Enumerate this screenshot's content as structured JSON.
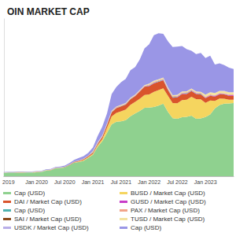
{
  "chart_data": {
    "type": "area",
    "title": "OIN MARKET CAP",
    "categories": [
      null,
      "2019",
      null,
      null,
      null,
      null,
      null,
      "Jan 2020",
      null,
      null,
      null,
      null,
      null,
      "Jul 2020",
      null,
      null,
      null,
      null,
      null,
      "Jan 2021",
      null,
      null,
      null,
      null,
      null,
      "Jul 2021",
      null,
      null,
      null,
      null,
      null,
      "Jan 2022",
      null,
      null,
      null,
      null,
      null,
      "Jul 2022",
      null,
      null,
      null,
      null,
      null,
      "Jan 2023",
      null,
      null,
      null,
      null,
      null,
      null
    ],
    "series": [
      {
        "name": "Cap (USD)",
        "color": "#8fd18f",
        "values": [
          3.6,
          4.0,
          4.0,
          4.1,
          4.1,
          4.1,
          4.1,
          4.6,
          4.7,
          6.3,
          6.8,
          8.9,
          9.2,
          10.0,
          12.5,
          15.5,
          16.2,
          17.6,
          21.0,
          24.6,
          33.5,
          40.0,
          49.6,
          59.5,
          62.4,
          62.8,
          64.1,
          68.7,
          71.8,
          74.6,
          78.2,
          78.5,
          79.2,
          80.8,
          83.0,
          73.6,
          66.4,
          65.8,
          67.6,
          68.0,
          69.4,
          65.8,
          66.2,
          67.8,
          70.6,
          77.6,
          81.5,
          83.0,
          83.2,
          83.8
        ]
      },
      {
        "name": "BUSD / Market Cap (USD)",
        "color": "#f5d55f",
        "values": [
          0.06,
          0.08,
          0.1,
          0.15,
          0.15,
          0.18,
          0.2,
          0.2,
          0.2,
          0.2,
          0.2,
          0.2,
          0.18,
          0.17,
          0.18,
          0.25,
          0.6,
          0.9,
          0.9,
          1.1,
          2.0,
          2.6,
          5.8,
          8.9,
          10.1,
          11.5,
          12.1,
          13.0,
          13.2,
          14.1,
          14.8,
          15.0,
          17.4,
          17.7,
          17.6,
          18.5,
          17.3,
          17.7,
          19.5,
          19.6,
          21.6,
          22.4,
          21.7,
          16.2,
          16.1,
          8.5,
          7.3,
          5.6,
          4.3,
          3.8
        ]
      },
      {
        "name": "DAI / Market Cap (USD)",
        "color": "#d9542c",
        "values": [
          0,
          0,
          0,
          0,
          0,
          0.05,
          0.06,
          0.07,
          0.08,
          0.09,
          0.1,
          0.12,
          0.13,
          0.2,
          0.35,
          0.45,
          0.7,
          0.95,
          1.0,
          1.2,
          1.5,
          2.2,
          3.0,
          4.7,
          5.4,
          5.5,
          5.8,
          6.2,
          6.6,
          8.3,
          9.4,
          9.5,
          9.6,
          9.4,
          9.2,
          6.5,
          6.0,
          6.7,
          6.9,
          6.5,
          6.4,
          5.8,
          5.6,
          5.3,
          5.3,
          5.1,
          4.9,
          4.9,
          4.6,
          4.5
        ]
      },
      {
        "name": "GUSD / Market Cap (USD)",
        "color": "#c83cc8",
        "values": [
          0.01,
          0.01,
          0.01,
          0.01,
          0.01,
          0.01,
          0.01,
          0.01,
          0.01,
          0.01,
          0.01,
          0.01,
          0.01,
          0.01,
          0.01,
          0.01,
          0.01,
          0.01,
          0.01,
          0.1,
          0.1,
          0.1,
          0.1,
          0.1,
          0.1,
          0.1,
          0.1,
          0.1,
          0.1,
          0.1,
          0.1,
          0.4,
          0.4,
          0.4,
          0.4,
          0.4,
          0.4,
          0.4,
          0.4,
          0.4,
          0.4,
          0.4,
          0.4,
          0.5,
          0.5,
          0.5,
          0.5,
          0.5,
          0.5,
          0.5
        ]
      },
      {
        "name": "Cap (USD)",
        "color": "#4fb3b0",
        "values": [
          0.1,
          0.1,
          0.1,
          0.1,
          0.1,
          0.1,
          0.1,
          0.1,
          0.1,
          0.1,
          0.1,
          0.1,
          0.1,
          0.1,
          0.1,
          0.1,
          0.1,
          0.1,
          0.1,
          0.4,
          0.4,
          0.4,
          0.4,
          0.4,
          0.4,
          0.4,
          0.4,
          0.4,
          0.4,
          0.4,
          0.4,
          0.6,
          0.6,
          0.6,
          0.6,
          0.6,
          0.6,
          0.6,
          0.6,
          0.6,
          0.6,
          0.6,
          0.6,
          0.3,
          0.3,
          0.3,
          0.3,
          0.3,
          0.3,
          0.3
        ]
      },
      {
        "name": "PAX / Market Cap (USD)",
        "color": "#f2a48a",
        "values": [
          0.2,
          0.2,
          0.2,
          0.2,
          0.2,
          0.2,
          0.2,
          0.2,
          0.2,
          0.2,
          0.2,
          0.2,
          0.2,
          0.2,
          0.2,
          0.2,
          0.2,
          0.2,
          0.2,
          0.7,
          0.7,
          0.7,
          0.7,
          0.7,
          0.7,
          0.7,
          0.7,
          0.7,
          0.7,
          0.7,
          0.7,
          0.9,
          0.9,
          0.9,
          0.9,
          0.9,
          0.9,
          0.9,
          0.9,
          0.9,
          0.9,
          0.9,
          0.9,
          0.7,
          0.7,
          0.7,
          0.7,
          0.7,
          0.7,
          0.7
        ]
      },
      {
        "name": "SAI / Market Cap (USD)",
        "color": "#8c4a1c",
        "values": [
          0.08,
          0.08,
          0.08,
          0.08,
          0.08,
          0.08,
          0.08,
          0.03,
          0.03,
          0.03,
          0.03,
          0.03,
          0.03,
          0.03,
          0.03,
          0.03,
          0.03,
          0.03,
          0.03,
          0.01,
          0.01,
          0.01,
          0.01,
          0.01,
          0.01,
          0.01,
          0.01,
          0.01,
          0.01,
          0.01,
          0.01,
          0.01,
          0.01,
          0.01,
          0.01,
          0.01,
          0.01,
          0.01,
          0.01,
          0.01,
          0.01,
          0.01,
          0.01,
          0.01,
          0.01,
          0.01,
          0.01,
          0.01,
          0.01,
          0.01
        ]
      },
      {
        "name": "TUSD / Market Cap (USD)",
        "color": "#f3e3a0",
        "values": [
          0.2,
          0.2,
          0.2,
          0.2,
          0.2,
          0.2,
          0.2,
          0.2,
          0.2,
          0.2,
          0.2,
          0.2,
          0.2,
          0.2,
          0.2,
          0.2,
          0.2,
          0.2,
          0.2,
          0.6,
          0.6,
          0.6,
          0.6,
          0.6,
          0.6,
          0.6,
          0.6,
          0.6,
          0.6,
          0.6,
          0.6,
          1.1,
          1.1,
          1.1,
          1.1,
          1.1,
          1.1,
          1.1,
          1.1,
          1.1,
          1.1,
          1.1,
          1.1,
          2.5,
          2.5,
          2.5,
          2.5,
          2.5,
          2.5,
          2.5
        ]
      },
      {
        "name": "USDK / Market Cap (USD)",
        "color": "#b9aee8",
        "values": [
          0.03,
          0.03,
          0.03,
          0.03,
          0.03,
          0.03,
          0.03,
          0.03,
          0.03,
          0.03,
          0.03,
          0.03,
          0.03,
          0.03,
          0.03,
          0.03,
          0.03,
          0.03,
          0.03,
          0.03,
          0.03,
          0.03,
          0.03,
          0.03,
          0.03,
          0.03,
          0.03,
          0.03,
          0.03,
          0.03,
          0.03,
          0.03,
          0.03,
          0.03,
          0.03,
          0.03,
          0.03,
          0.03,
          0.03,
          0.03,
          0.03,
          0.03,
          0.03,
          0.03,
          0.03,
          0.03,
          0.03,
          0.03,
          0.03,
          0.03
        ]
      },
      {
        "name": "Cap (USD)",
        "color": "#9a96e6",
        "values": [
          0.45,
          0.5,
          0.5,
          0.5,
          0.5,
          0.5,
          0.52,
          0.5,
          0.55,
          0.7,
          0.75,
          0.8,
          1.0,
          1.1,
          1.5,
          1.8,
          2.8,
          2.9,
          3.2,
          4.1,
          7.0,
          10.0,
          11.6,
          19.0,
          22.5,
          26.0,
          27.5,
          31.5,
          31.5,
          34.9,
          42.0,
          45.0,
          52.0,
          52.6,
          50.0,
          52.6,
          55.0,
          55.1,
          52.0,
          48.1,
          43.0,
          42.6,
          44.5,
          41.9,
          41.8,
          32.5,
          31.5,
          29.5,
          28.0,
          26.4
        ]
      }
    ],
    "ylim": [
      0,
      180
    ],
    "stacked": true,
    "grid": false,
    "legend": "bottom",
    "tick_labels": "x"
  }
}
